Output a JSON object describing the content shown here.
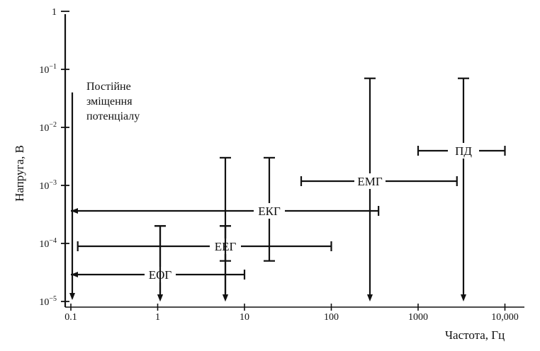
{
  "chart_data": {
    "type": "range",
    "xlabel": "Частота, Гц",
    "ylabel": "Напруга, В",
    "x_scale": "log",
    "y_scale": "log",
    "xlim": [
      0.09,
      12000
    ],
    "ylim": [
      1e-05,
      1
    ],
    "x_ticks": [
      {
        "value": 0.1,
        "label": "0.1"
      },
      {
        "value": 1,
        "label": "1"
      },
      {
        "value": 10,
        "label": "10"
      },
      {
        "value": 100,
        "label": "100"
      },
      {
        "value": 1000,
        "label": "1000"
      },
      {
        "value": 10000,
        "label": "10,000"
      }
    ],
    "y_ticks": [
      {
        "value": 1,
        "base": "1",
        "exp": ""
      },
      {
        "value": 0.1,
        "base": "10",
        "exp": "−1"
      },
      {
        "value": 0.01,
        "base": "10",
        "exp": "−2"
      },
      {
        "value": 0.001,
        "base": "10",
        "exp": "−3"
      },
      {
        "value": 0.0001,
        "base": "10",
        "exp": "−4"
      },
      {
        "value": 1e-05,
        "base": "10",
        "exp": "−5"
      }
    ],
    "annotation": [
      "Постійне",
      "зміщення",
      "потенціалу"
    ],
    "series": [
      {
        "name": "ЕОГ",
        "freq": [
          0.1,
          10
        ],
        "voltage": [
          1e-05,
          0.0002
        ],
        "freq_open_left": true,
        "voltage_open_bottom": true
      },
      {
        "name": "ЕЕГ",
        "freq": [
          0.12,
          100
        ],
        "voltage": [
          1e-05,
          0.0002
        ],
        "voltage_open_bottom": true
      },
      {
        "name": "ЕКГ",
        "freq": [
          0.1,
          350
        ],
        "voltage": [
          5e-05,
          0.003
        ],
        "freq_open_left": true
      },
      {
        "name": "ЕМГ",
        "freq": [
          45,
          2800
        ],
        "voltage": [
          1e-05,
          0.07
        ],
        "voltage_open_bottom": true
      },
      {
        "name": "ПД",
        "freq": [
          1000,
          10000
        ],
        "voltage": [
          1e-05,
          0.07
        ],
        "voltage_open_bottom": true
      },
      {
        "name": "Постійне зміщення потенціалу",
        "freq": [
          0.1,
          0.1
        ],
        "voltage": [
          1e-05,
          0.04
        ],
        "voltage_open_bottom": true
      }
    ]
  }
}
